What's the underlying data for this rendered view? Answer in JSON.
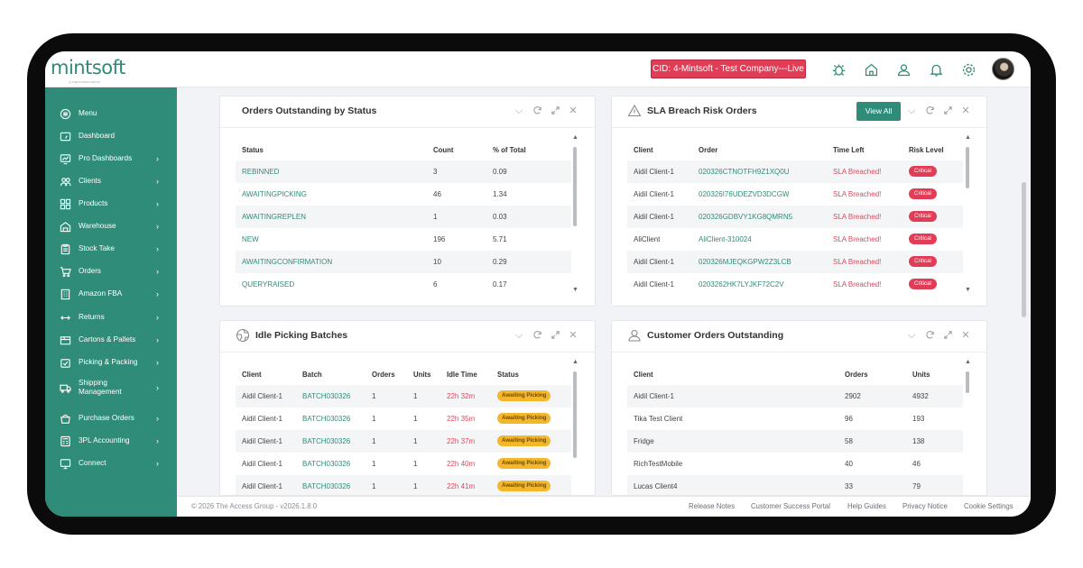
{
  "brand": {
    "logo_text": "mintsoft",
    "logo_sub": "by THE ACCESS GROUP"
  },
  "header": {
    "cid_label": "CID: 4-Mintsoft - Test Company---Live",
    "icons": [
      "warehouse-bug-icon",
      "home-icon",
      "clients-icon",
      "bell-icon",
      "settings-icon",
      "user-avatar"
    ]
  },
  "sidebar": {
    "items": [
      {
        "label": "Menu",
        "icon": "menu-icon",
        "chevron": false
      },
      {
        "label": "Dashboard",
        "icon": "dashboard-icon",
        "chevron": false
      },
      {
        "label": "Pro Dashboards",
        "icon": "chart-icon",
        "chevron": true
      },
      {
        "label": "Clients",
        "icon": "clients-icon",
        "chevron": true
      },
      {
        "label": "Products",
        "icon": "products-icon",
        "chevron": true
      },
      {
        "label": "Warehouse",
        "icon": "warehouse-icon",
        "chevron": true
      },
      {
        "label": "Stock Take",
        "icon": "clipboard-icon",
        "chevron": true
      },
      {
        "label": "Orders",
        "icon": "cart-icon",
        "chevron": true
      },
      {
        "label": "Amazon FBA",
        "icon": "building-icon",
        "chevron": true
      },
      {
        "label": "Returns",
        "icon": "returns-icon",
        "chevron": true
      },
      {
        "label": "Cartons & Pallets",
        "icon": "box-icon",
        "chevron": true
      },
      {
        "label": "Picking & Packing",
        "icon": "picking-icon",
        "chevron": true
      },
      {
        "label": "Shipping Management",
        "icon": "truck-icon",
        "chevron": true
      },
      {
        "label": "Purchase Orders",
        "icon": "purchase-icon",
        "chevron": true
      },
      {
        "label": "3PL Accounting",
        "icon": "accounting-icon",
        "chevron": true
      },
      {
        "label": "Connect",
        "icon": "connect-icon",
        "chevron": true
      }
    ]
  },
  "panels": {
    "orders_outstanding": {
      "title": "Orders Outstanding by Status",
      "columns": [
        "Status",
        "Count",
        "% of Total"
      ],
      "rows": [
        [
          "REBINNED",
          "3",
          "0.09"
        ],
        [
          "AWAITINGPICKING",
          "46",
          "1.34"
        ],
        [
          "AWAITINGREPLEN",
          "1",
          "0.03"
        ],
        [
          "NEW",
          "196",
          "5.71"
        ],
        [
          "AWAITINGCONFIRMATION",
          "10",
          "0.29"
        ],
        [
          "QUERYRAISED",
          "6",
          "0.17"
        ]
      ]
    },
    "sla_breach": {
      "title": "SLA Breach Risk Orders",
      "view_all": "View All",
      "columns": [
        "Client",
        "Order",
        "Time Left",
        "Risk Level"
      ],
      "rows": [
        [
          "Aidil Client-1",
          "020326CTNOTFH9Z1XQ0U",
          "SLA Breached!",
          "Critical"
        ],
        [
          "Aidil Client-1",
          "020326I76UDEZVD3DCGW",
          "SLA Breached!",
          "Critical"
        ],
        [
          "Aidil Client-1",
          "020326GDBVY1KG8QMRN5",
          "SLA Breached!",
          "Critical"
        ],
        [
          "AliClient",
          "AliClient-310024",
          "SLA Breached!",
          "Critical"
        ],
        [
          "Aidil Client-1",
          "020326MJEQKGPW2Z3LCB",
          "SLA Breached!",
          "Critical"
        ],
        [
          "Aidil Client-1",
          "0203262HK7LYJKF72C2V",
          "SLA Breached!",
          "Critical"
        ]
      ]
    },
    "idle_picking": {
      "title": "Idle Picking Batches",
      "columns": [
        "Client",
        "Batch",
        "Orders",
        "Units",
        "Idle Time",
        "Status"
      ],
      "rows": [
        [
          "Aidil Client-1",
          "BATCH030326",
          "1",
          "1",
          "22h 32m",
          "Awaiting Picking"
        ],
        [
          "Aidil Client-1",
          "BATCH030326",
          "1",
          "1",
          "22h 35m",
          "Awaiting Picking"
        ],
        [
          "Aidil Client-1",
          "BATCH030326",
          "1",
          "1",
          "22h 37m",
          "Awaiting Picking"
        ],
        [
          "Aidil Client-1",
          "BATCH030326",
          "1",
          "1",
          "22h 40m",
          "Awaiting Picking"
        ],
        [
          "Aidil Client-1",
          "BATCH030326",
          "1",
          "1",
          "22h 41m",
          "Awaiting Picking"
        ]
      ]
    },
    "customer_orders": {
      "title": "Customer Orders Outstanding",
      "columns": [
        "Client",
        "Orders",
        "Units"
      ],
      "rows": [
        [
          "Aidil Client-1",
          "2902",
          "4932"
        ],
        [
          "Tika Test Client",
          "96",
          "193"
        ],
        [
          "Fridge",
          "58",
          "138"
        ],
        [
          "RichTestMobile",
          "40",
          "46"
        ],
        [
          "Lucas Client4",
          "33",
          "79"
        ]
      ]
    }
  },
  "footer": {
    "copyright": "© 2026 The Access Group - v2026.1.8.0",
    "links": [
      "Release Notes",
      "Customer Success Portal",
      "Help Guides",
      "Privacy Notice",
      "Cookie Settings"
    ]
  },
  "colors": {
    "brand_teal": "#2f8c79",
    "critical_red": "#e23d56",
    "awaiting_yellow": "#f5b72a",
    "cid_red": "#e23d56"
  }
}
